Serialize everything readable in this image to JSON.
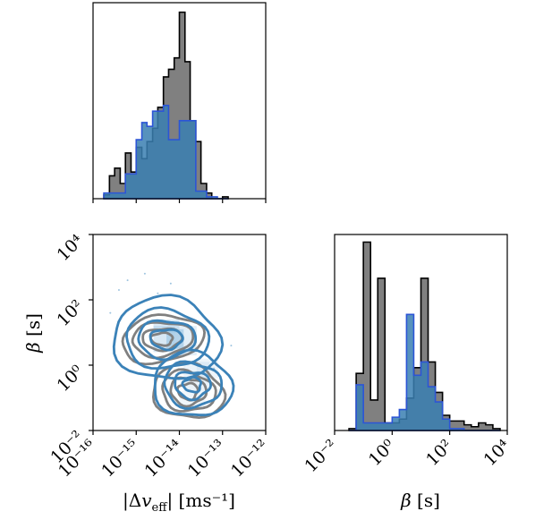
{
  "chart_data": [
    {
      "type": "histogram",
      "panel": "top-left",
      "x_scale": "log",
      "xlim": [
        1e-16,
        1e-12
      ],
      "series": [
        {
          "color": "#7f7f7f",
          "bin_edges": [
            -15.75,
            -15.62,
            -15.5,
            -15.37,
            -15.25,
            -15.12,
            -15.0,
            -14.87,
            -14.75,
            -14.62,
            -14.5,
            -14.37,
            -14.25,
            -14.12,
            -14.0,
            -13.87,
            -13.75,
            -13.62,
            -13.5,
            -13.37,
            -13.25,
            -13.12,
            -13.0,
            -12.87
          ],
          "counts": [
            0.02,
            0.12,
            0.16,
            0.08,
            0.24,
            0.14,
            0.27,
            0.21,
            0.3,
            0.37,
            0.48,
            0.64,
            0.68,
            0.74,
            0.98,
            0.72,
            0.41,
            0.3,
            0.08,
            0.03,
            0.0,
            0.0,
            0.01
          ]
        },
        {
          "color": "#1f77b4",
          "bin_edges": [
            -15.75,
            -15.62,
            -15.5,
            -15.37,
            -15.25,
            -15.12,
            -15.0,
            -14.87,
            -14.75,
            -14.62,
            -14.5,
            -14.37,
            -14.25,
            -14.12,
            -14.0,
            -13.87,
            -13.75,
            -13.62,
            -13.5,
            -13.37,
            -13.25,
            -13.12,
            -13.0,
            -12.87
          ],
          "counts": [
            0.03,
            0.03,
            0.03,
            0.03,
            0.13,
            0.13,
            0.31,
            0.4,
            0.38,
            0.46,
            0.46,
            0.49,
            0.31,
            0.31,
            0.41,
            0.41,
            0.41,
            0.04,
            0.04,
            0.01,
            0.01,
            0.0,
            0.0
          ]
        }
      ]
    },
    {
      "type": "contour",
      "panel": "bottom-left",
      "x_scale": "log",
      "y_scale": "log",
      "xlim": [
        1e-16,
        1e-12
      ],
      "ylim": [
        0.01,
        10000
      ],
      "xlabel": "|Δv_eff| [ms⁻¹]",
      "ylabel": "β [s]",
      "xticks": [
        "10⁻¹⁶",
        "10⁻¹⁵",
        "10⁻¹⁴",
        "10⁻¹³",
        "10⁻¹²"
      ],
      "yticks": [
        "10⁻²",
        "10⁰",
        "10²",
        "10⁴"
      ],
      "series": [
        {
          "color": "#7f7f7f",
          "clusters": [
            {
              "log10_x": -14.4,
              "log10_y": 0.8
            },
            {
              "log10_x": -13.8,
              "log10_y": -0.8
            }
          ]
        },
        {
          "color": "#1f77b4",
          "clusters": [
            {
              "log10_x": -14.3,
              "log10_y": 0.8
            },
            {
              "log10_x": -13.7,
              "log10_y": -0.6
            }
          ]
        }
      ]
    },
    {
      "type": "histogram",
      "panel": "bottom-right",
      "x_scale": "log",
      "xlim": [
        0.01,
        10000
      ],
      "xlabel": "β [s]",
      "xticks": [
        "10⁻²",
        "10⁰",
        "10²",
        "10⁴"
      ],
      "series": [
        {
          "color": "#7f7f7f",
          "bin_edges": [
            -1.5,
            -1.375,
            -1.25,
            -1.125,
            -1.0,
            -0.875,
            -0.75,
            -0.625,
            -0.5,
            -0.375,
            -0.25,
            -0.125,
            0.0,
            0.125,
            0.25,
            0.375,
            0.5,
            0.625,
            0.75,
            0.875,
            1.0,
            1.125,
            1.25,
            1.375,
            1.5,
            1.625,
            1.75,
            1.875,
            2.0,
            2.125,
            2.25,
            2.375,
            2.5,
            2.625,
            2.75,
            2.875,
            3.0,
            3.125,
            3.25,
            3.375,
            3.5,
            3.625,
            3.75
          ],
          "counts": [
            0.01,
            0.01,
            0.3,
            0.3,
            0.99,
            0.99,
            0.16,
            0.16,
            0.8,
            0.8,
            0.04,
            0.04,
            0.04,
            0.04,
            0.06,
            0.06,
            0.17,
            0.17,
            0.33,
            0.33,
            0.8,
            0.8,
            0.36,
            0.36,
            0.2,
            0.2,
            0.08,
            0.08,
            0.05,
            0.05,
            0.05,
            0.05,
            0.03,
            0.03,
            0.02,
            0.02,
            0.04,
            0.04,
            0.03,
            0.03,
            0.01,
            0.01
          ]
        },
        {
          "color": "#1f77b4",
          "bin_edges": [
            -1.5,
            -1.375,
            -1.25,
            -1.125,
            -1.0,
            -0.875,
            -0.75,
            -0.625,
            -0.5,
            -0.375,
            -0.25,
            -0.125,
            0.0,
            0.125,
            0.25,
            0.375,
            0.5,
            0.625,
            0.75,
            0.875,
            1.0,
            1.125,
            1.25,
            1.375,
            1.5,
            1.625,
            1.75,
            1.875,
            2.0,
            2.125,
            2.25,
            2.375,
            2.5,
            2.625,
            2.75,
            2.875,
            3.0,
            3.125,
            3.25,
            3.375,
            3.5,
            3.625,
            3.75
          ],
          "counts": [
            0.0,
            0.0,
            0.24,
            0.24,
            0.04,
            0.04,
            0.04,
            0.04,
            0.04,
            0.04,
            0.04,
            0.04,
            0.07,
            0.07,
            0.11,
            0.11,
            0.61,
            0.61,
            0.29,
            0.29,
            0.36,
            0.36,
            0.23,
            0.23,
            0.15,
            0.15,
            0.06,
            0.06,
            0.01,
            0.01,
            0.01,
            0.01,
            0.0,
            0.0,
            0.0,
            0.0,
            0.0,
            0.0,
            0.0,
            0.0,
            0.0,
            0.0
          ]
        }
      ]
    }
  ],
  "colors": {
    "gray": "#7f7f7f",
    "blue": "#1f77b4",
    "blue_line": "#2c55d6",
    "contour_blue": "#3b82b8"
  }
}
